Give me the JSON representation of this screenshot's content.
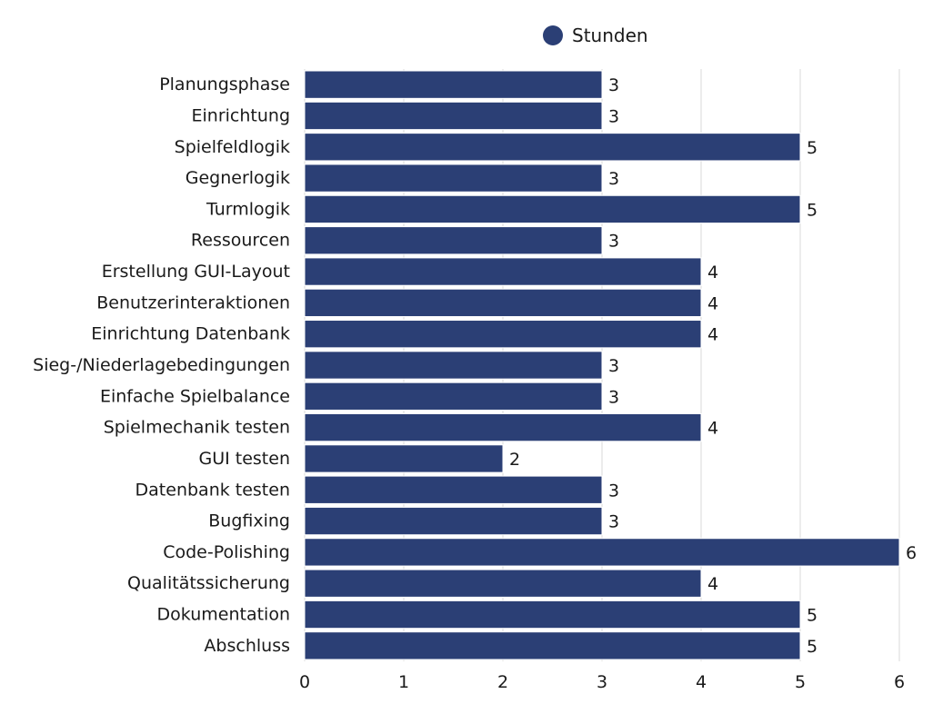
{
  "chart_data": {
    "type": "bar",
    "orientation": "horizontal",
    "categories": [
      "Planungsphase",
      "Einrichtung",
      "Spielfeldlogik",
      "Gegnerlogik",
      "Turmlogik",
      "Ressourcen",
      "Erstellung GUI-Layout",
      "Benutzerinteraktionen",
      "Einrichtung Datenbank",
      "Sieg-/Niederlagebedingungen",
      "Einfache Spielbalance",
      "Spielmechanik testen",
      "GUI testen",
      "Datenbank testen",
      "Bugfixing",
      "Code-Polishing",
      "Qualitätssicherung",
      "Dokumentation",
      "Abschluss"
    ],
    "series": [
      {
        "name": "Stunden",
        "color": "#2b3f75",
        "values": [
          3,
          3,
          5,
          3,
          5,
          3,
          4,
          4,
          4,
          3,
          3,
          4,
          2,
          3,
          3,
          6,
          4,
          5,
          5
        ]
      }
    ],
    "xlim": [
      0,
      6
    ],
    "xticks": [
      "0",
      "1",
      "2",
      "3",
      "4",
      "5",
      "6"
    ],
    "grid": true,
    "legend_position": "top-center",
    "data_labels": true
  }
}
